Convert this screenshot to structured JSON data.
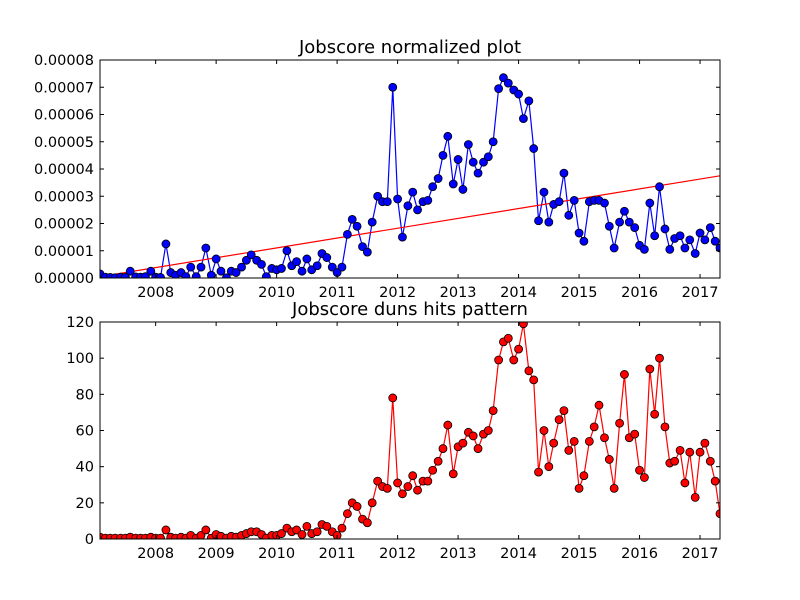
{
  "chart_data": [
    {
      "type": "line",
      "title": "Jobscore normalized plot",
      "xlabel": "",
      "ylabel": "",
      "xlim": [
        2007.08,
        2017.33
      ],
      "ylim": [
        0,
        8e-05
      ],
      "x_ticks": [
        "2008",
        "2009",
        "2010",
        "2011",
        "2012",
        "2013",
        "2014",
        "2015",
        "2016",
        "2017"
      ],
      "y_ticks": [
        "0.00000",
        "0.00001",
        "0.00002",
        "0.00003",
        "0.00004",
        "0.00005",
        "0.00006",
        "0.00007",
        "0.00008"
      ],
      "marker_color": "#0000ff",
      "line_color": "#0000ff",
      "trend_line": {
        "color": "#ff0000",
        "start": [
          2007.08,
          5e-07
        ],
        "end": [
          2017.33,
          3.75e-05
        ]
      },
      "series": [
        {
          "x": [
            2007.08,
            2007.17,
            2007.25,
            2007.33,
            2007.42,
            2007.5,
            2007.58,
            2007.67,
            2007.75,
            2007.83,
            2007.92,
            2008.0,
            2008.08,
            2008.17,
            2008.25,
            2008.33,
            2008.42,
            2008.5,
            2008.58,
            2008.67,
            2008.75,
            2008.83,
            2008.92,
            2009.0,
            2009.08,
            2009.17,
            2009.25,
            2009.33,
            2009.42,
            2009.5,
            2009.58,
            2009.67,
            2009.75,
            2009.83,
            2009.92,
            2010.0,
            2010.08,
            2010.17,
            2010.25,
            2010.33,
            2010.42,
            2010.5,
            2010.58,
            2010.67,
            2010.75,
            2010.83,
            2010.92,
            2011.0,
            2011.08,
            2011.17,
            2011.25,
            2011.33,
            2011.42,
            2011.5,
            2011.58,
            2011.67,
            2011.75,
            2011.83,
            2011.92,
            2012.0,
            2012.08,
            2012.17,
            2012.25,
            2012.33,
            2012.42,
            2012.5,
            2012.58,
            2012.67,
            2012.75,
            2012.83,
            2012.92,
            2013.0,
            2013.08,
            2013.17,
            2013.25,
            2013.33,
            2013.42,
            2013.5,
            2013.58,
            2013.67,
            2013.75,
            2013.83,
            2013.92,
            2014.0,
            2014.08,
            2014.17,
            2014.25,
            2014.33,
            2014.42,
            2014.5,
            2014.58,
            2014.67,
            2014.75,
            2014.83,
            2014.92,
            2015.0,
            2015.08,
            2015.17,
            2015.25,
            2015.33,
            2015.42,
            2015.5,
            2015.58,
            2015.67,
            2015.75,
            2015.83,
            2015.92,
            2016.0,
            2016.08,
            2016.17,
            2016.25,
            2016.33,
            2016.42,
            2016.5,
            2016.58,
            2016.67,
            2016.75,
            2016.83,
            2016.92,
            2017.0,
            2017.08,
            2017.17,
            2017.25,
            2017.33
          ],
          "y": [
            1.5e-06,
            3e-07,
            2e-07,
            1e-07,
            3e-07,
            2e-07,
            2.5e-06,
            4e-07,
            3e-07,
            5e-07,
            2.5e-06,
            3e-07,
            2e-07,
            1.25e-05,
            2e-06,
            1e-06,
            2e-06,
            5e-07,
            4e-06,
            5e-07,
            4e-06,
            1.1e-05,
            1e-06,
            7e-06,
            2.5e-06,
            1e-07,
            2.5e-06,
            2e-06,
            4e-06,
            6.5e-06,
            8.5e-06,
            6.5e-06,
            5e-06,
            5e-07,
            3.5e-06,
            3e-06,
            3.5e-06,
            1e-05,
            4.5e-06,
            6e-06,
            2.5e-06,
            7e-06,
            3e-06,
            4.5e-06,
            9e-06,
            7.5e-06,
            4e-06,
            2e-06,
            4e-06,
            1.6e-05,
            2.15e-05,
            1.9e-05,
            1.15e-05,
            9.5e-06,
            2.05e-05,
            3e-05,
            2.8e-05,
            2.8e-05,
            7e-05,
            2.9e-05,
            1.5e-05,
            2.65e-05,
            3.15e-05,
            2.5e-05,
            2.8e-05,
            2.85e-05,
            3.35e-05,
            3.65e-05,
            4.5e-05,
            5.2e-05,
            3.45e-05,
            4.35e-05,
            3.25e-05,
            4.9e-05,
            4.25e-05,
            3.85e-05,
            4.25e-05,
            4.45e-05,
            5e-05,
            6.95e-05,
            7.35e-05,
            7.15e-05,
            6.9e-05,
            6.75e-05,
            5.85e-05,
            6.5e-05,
            4.75e-05,
            2.1e-05,
            3.15e-05,
            2.05e-05,
            2.7e-05,
            2.8e-05,
            3.85e-05,
            2.3e-05,
            2.85e-05,
            1.65e-05,
            1.35e-05,
            2.8e-05,
            2.85e-05,
            2.85e-05,
            2.75e-05,
            1.9e-05,
            1.1e-05,
            2.05e-05,
            2.45e-05,
            2.05e-05,
            1.85e-05,
            1.2e-05,
            1.05e-05,
            2.75e-05,
            1.55e-05,
            3.35e-05,
            1.8e-05,
            1.05e-05,
            1.45e-05,
            1.55e-05,
            1.1e-05,
            1.4e-05,
            9e-06,
            1.65e-05,
            1.4e-05,
            1.85e-05,
            1.35e-05,
            1.1e-05
          ]
        }
      ]
    },
    {
      "type": "line",
      "title": "Jobscore duns hits pattern",
      "xlabel": "",
      "ylabel": "",
      "xlim": [
        2007.08,
        2017.33
      ],
      "ylim": [
        0,
        120
      ],
      "x_ticks": [
        "2008",
        "2009",
        "2010",
        "2011",
        "2012",
        "2013",
        "2014",
        "2015",
        "2016",
        "2017"
      ],
      "y_ticks": [
        "0",
        "20",
        "40",
        "60",
        "80",
        "100",
        "120"
      ],
      "marker_color": "#ff0000",
      "line_color": "#ff0000",
      "series": [
        {
          "x": [
            2007.08,
            2007.17,
            2007.25,
            2007.33,
            2007.42,
            2007.5,
            2007.58,
            2007.67,
            2007.75,
            2007.83,
            2007.92,
            2008.0,
            2008.08,
            2008.17,
            2008.25,
            2008.33,
            2008.42,
            2008.5,
            2008.58,
            2008.67,
            2008.75,
            2008.83,
            2008.92,
            2009.0,
            2009.08,
            2009.17,
            2009.25,
            2009.33,
            2009.42,
            2009.5,
            2009.58,
            2009.67,
            2009.75,
            2009.83,
            2009.92,
            2010.0,
            2010.08,
            2010.17,
            2010.25,
            2010.33,
            2010.42,
            2010.5,
            2010.58,
            2010.67,
            2010.75,
            2010.83,
            2010.92,
            2011.0,
            2011.08,
            2011.17,
            2011.25,
            2011.33,
            2011.42,
            2011.5,
            2011.58,
            2011.67,
            2011.75,
            2011.83,
            2011.92,
            2012.0,
            2012.08,
            2012.17,
            2012.25,
            2012.33,
            2012.42,
            2012.5,
            2012.58,
            2012.67,
            2012.75,
            2012.83,
            2012.92,
            2013.0,
            2013.08,
            2013.17,
            2013.25,
            2013.33,
            2013.42,
            2013.5,
            2013.58,
            2013.67,
            2013.75,
            2013.83,
            2013.92,
            2014.0,
            2014.08,
            2014.17,
            2014.25,
            2014.33,
            2014.42,
            2014.5,
            2014.58,
            2014.67,
            2014.75,
            2014.83,
            2014.92,
            2015.0,
            2015.08,
            2015.17,
            2015.25,
            2015.33,
            2015.42,
            2015.5,
            2015.58,
            2015.67,
            2015.75,
            2015.83,
            2015.92,
            2016.0,
            2016.08,
            2016.17,
            2016.25,
            2016.33,
            2016.42,
            2016.5,
            2016.58,
            2016.67,
            2016.75,
            2016.83,
            2016.92,
            2017.0,
            2017.08,
            2017.17,
            2017.25,
            2017.33
          ],
          "y": [
            1,
            0.5,
            0.5,
            0.5,
            0.5,
            0.5,
            1,
            0.5,
            0.5,
            0.5,
            1,
            0.5,
            0.5,
            5,
            1,
            0.5,
            1,
            0.5,
            2,
            0.5,
            2,
            5,
            0.5,
            2.5,
            1.5,
            0.5,
            1.5,
            1,
            2,
            3,
            4,
            4,
            2.5,
            0.5,
            2,
            2,
            3,
            6,
            4,
            5,
            2.5,
            7,
            3,
            4,
            8,
            7,
            4,
            2,
            6,
            14,
            20,
            18,
            11,
            9,
            20,
            32,
            29,
            28,
            78,
            31,
            25,
            29,
            35,
            27,
            32,
            32,
            38,
            43,
            50,
            63,
            36,
            51,
            53,
            59,
            57,
            50,
            58,
            60,
            71,
            99,
            109,
            111,
            99,
            105,
            119,
            93,
            88,
            37,
            60,
            40,
            53,
            66,
            71,
            49,
            54,
            28,
            35,
            54,
            62,
            74,
            56,
            44,
            28,
            64,
            91,
            56,
            58,
            38,
            34,
            94,
            69,
            100,
            62,
            42,
            43,
            49,
            31,
            48,
            23,
            48,
            53,
            43,
            32,
            14
          ]
        }
      ]
    }
  ]
}
